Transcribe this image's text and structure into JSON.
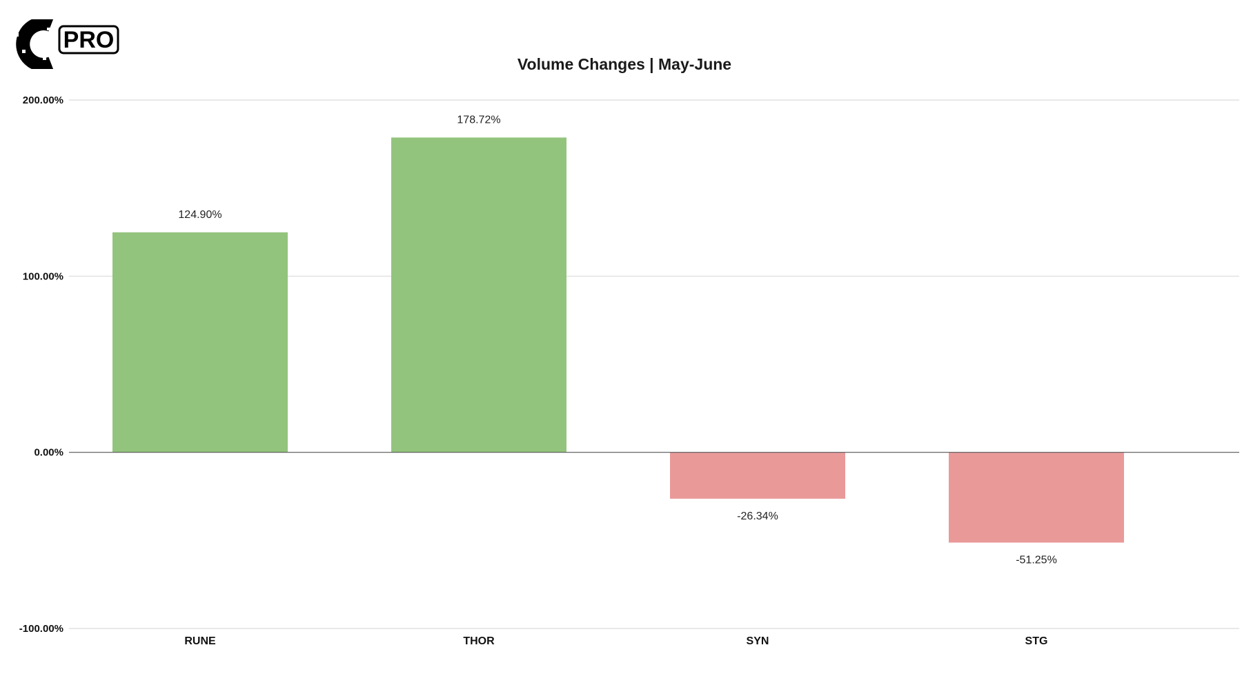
{
  "brand": {
    "logo_letter": "C",
    "badge_text": "PRO"
  },
  "colors": {
    "positive": "#93c47d",
    "negative": "#ea9999"
  },
  "chart_data": {
    "type": "bar",
    "title": "Volume Changes | May-June",
    "categories": [
      "RUNE",
      "THOR",
      "SYN",
      "STG"
    ],
    "values": [
      124.9,
      178.72,
      -26.34,
      -51.25
    ],
    "data_labels": [
      "124.90%",
      "178.72%",
      "-26.34%",
      "-51.25%"
    ],
    "ylim": [
      -100,
      200
    ],
    "yticks": [
      200,
      100,
      0,
      -100
    ],
    "ytick_labels": [
      "200.00%",
      "100.00%",
      "0.00%",
      "-100.00%"
    ],
    "xlabel": "",
    "ylabel": "",
    "grid": true,
    "legend": "none"
  }
}
